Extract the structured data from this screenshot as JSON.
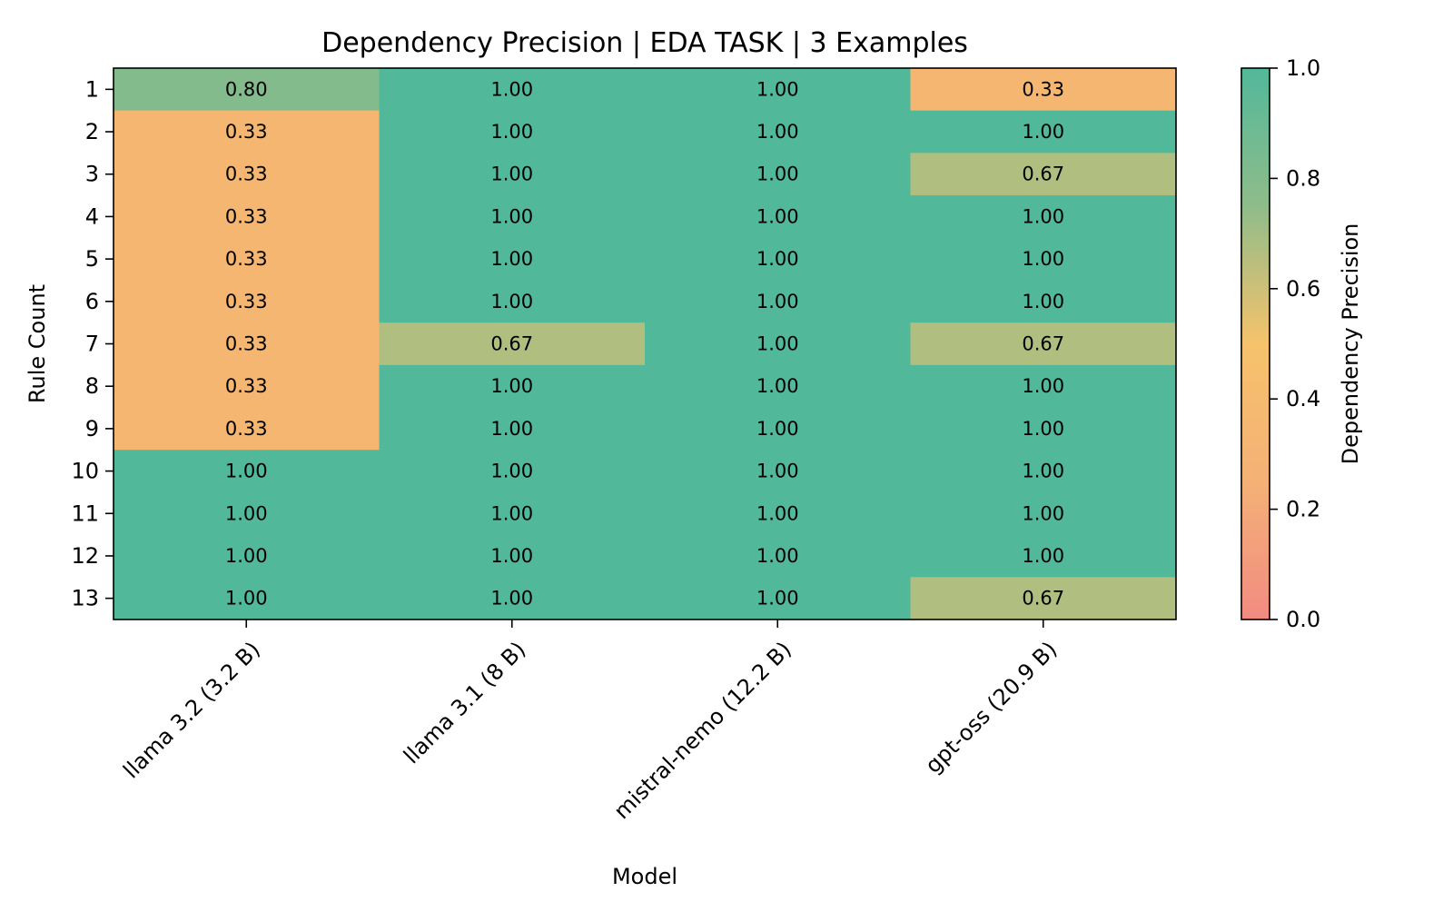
{
  "chart_data": {
    "type": "heatmap",
    "title": "Dependency Precision | EDA TASK | 3 Examples",
    "xlabel": "Model",
    "ylabel": "Rule Count",
    "x_categories": [
      "llama 3.2 (3.2 B)",
      "llama 3.1 (8 B)",
      "mistral-nemo (12.2 B)",
      "gpt-oss (20.9 B)"
    ],
    "y_categories": [
      "1",
      "2",
      "3",
      "4",
      "5",
      "6",
      "7",
      "8",
      "9",
      "10",
      "11",
      "12",
      "13"
    ],
    "values": [
      [
        0.8,
        1.0,
        1.0,
        0.33
      ],
      [
        0.33,
        1.0,
        1.0,
        1.0
      ],
      [
        0.33,
        1.0,
        1.0,
        0.67
      ],
      [
        0.33,
        1.0,
        1.0,
        1.0
      ],
      [
        0.33,
        1.0,
        1.0,
        1.0
      ],
      [
        0.33,
        1.0,
        1.0,
        1.0
      ],
      [
        0.33,
        0.67,
        1.0,
        0.67
      ],
      [
        0.33,
        1.0,
        1.0,
        1.0
      ],
      [
        0.33,
        1.0,
        1.0,
        1.0
      ],
      [
        1.0,
        1.0,
        1.0,
        1.0
      ],
      [
        1.0,
        1.0,
        1.0,
        1.0
      ],
      [
        1.0,
        1.0,
        1.0,
        1.0
      ],
      [
        1.0,
        1.0,
        1.0,
        0.67
      ]
    ],
    "value_format": "0.00",
    "colorbar": {
      "label": "Dependency Precision",
      "range": [
        0.0,
        1.0
      ],
      "ticks": [
        "0.0",
        "0.2",
        "0.4",
        "0.6",
        "0.8",
        "1.0"
      ],
      "colors": [
        "#f28b82",
        "#f4b176",
        "#f6c26b",
        "#8fbc8a",
        "#52b89a"
      ]
    },
    "grid": false,
    "legend": "colorbar-right"
  }
}
